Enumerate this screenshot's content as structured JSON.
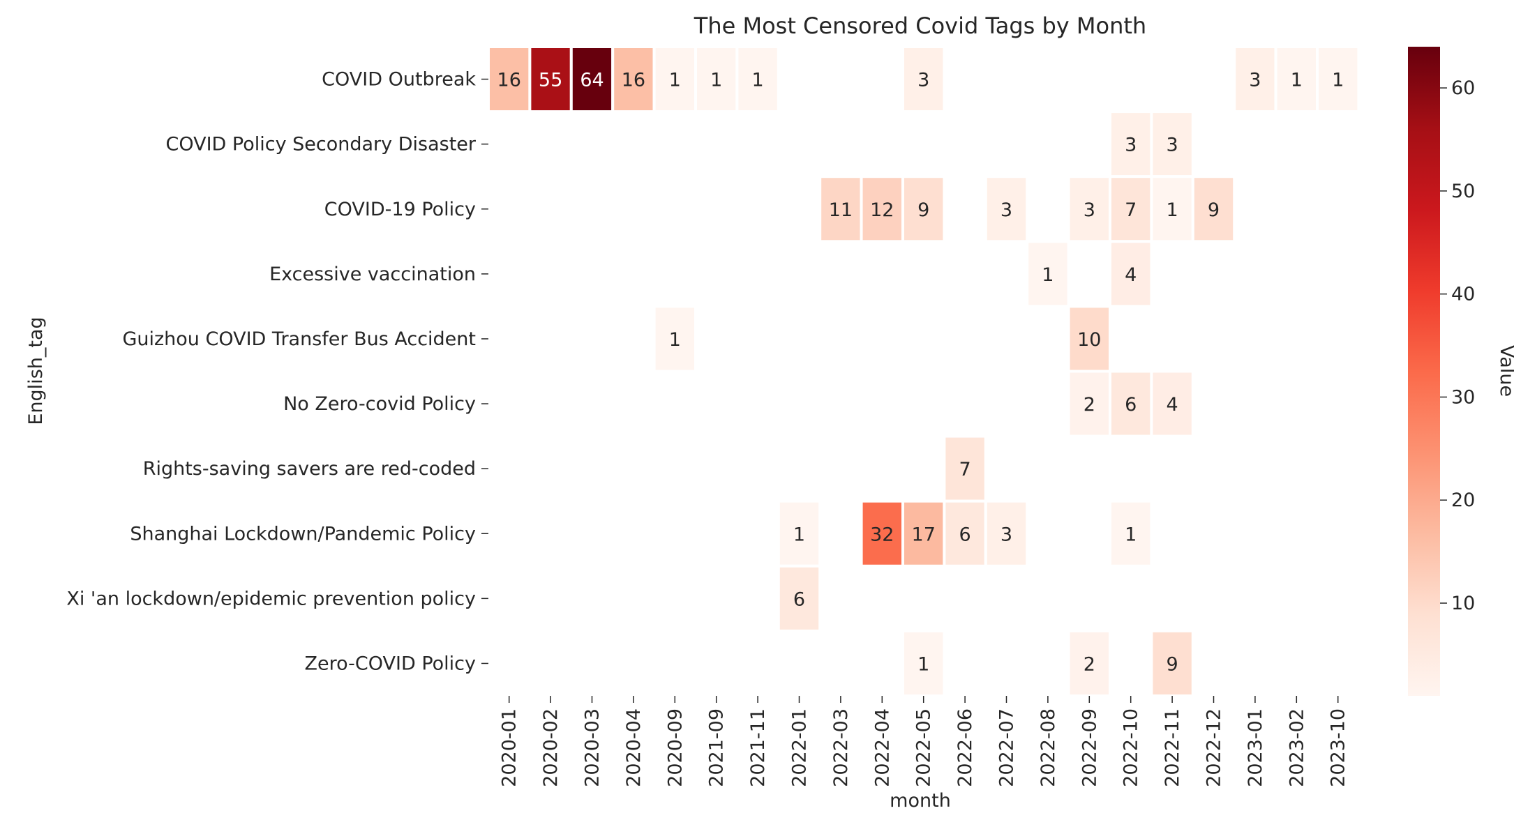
{
  "chart_data": {
    "type": "heatmap",
    "title": "The Most Censored Covid Tags by Month",
    "xlabel": "month",
    "ylabel": "English_tag",
    "colorbar_label": "Value",
    "colormap": "Reds",
    "value_range": [
      1,
      64
    ],
    "colorbar_ticks": [
      10,
      20,
      30,
      40,
      50,
      60
    ],
    "x": [
      "2020-01",
      "2020-02",
      "2020-03",
      "2020-04",
      "2020-09",
      "2021-09",
      "2021-11",
      "2022-01",
      "2022-03",
      "2022-04",
      "2022-05",
      "2022-06",
      "2022-07",
      "2022-08",
      "2022-09",
      "2022-10",
      "2022-11",
      "2022-12",
      "2023-01",
      "2023-02",
      "2023-10"
    ],
    "y": [
      "COVID Outbreak",
      "COVID Policy Secondary Disaster",
      "COVID-19 Policy",
      "Excessive vaccination",
      "Guizhou COVID Transfer Bus Accident",
      "No Zero-covid Policy",
      "Rights-saving savers are red-coded",
      "Shanghai Lockdown/Pandemic Policy",
      "Xi 'an lockdown/epidemic prevention policy",
      "Zero-COVID Policy"
    ],
    "values": [
      [
        16,
        55,
        64,
        16,
        1,
        1,
        1,
        null,
        null,
        null,
        3,
        null,
        null,
        null,
        null,
        null,
        null,
        null,
        3,
        1,
        1
      ],
      [
        null,
        null,
        null,
        null,
        null,
        null,
        null,
        null,
        null,
        null,
        null,
        null,
        null,
        null,
        null,
        3,
        3,
        null,
        null,
        null,
        null
      ],
      [
        null,
        null,
        null,
        null,
        null,
        null,
        null,
        null,
        11,
        12,
        9,
        null,
        3,
        null,
        3,
        7,
        1,
        9,
        null,
        null,
        null
      ],
      [
        null,
        null,
        null,
        null,
        null,
        null,
        null,
        null,
        null,
        null,
        null,
        null,
        null,
        1,
        null,
        4,
        null,
        null,
        null,
        null,
        null
      ],
      [
        null,
        null,
        null,
        null,
        1,
        null,
        null,
        null,
        null,
        null,
        null,
        null,
        null,
        null,
        10,
        null,
        null,
        null,
        null,
        null,
        null
      ],
      [
        null,
        null,
        null,
        null,
        null,
        null,
        null,
        null,
        null,
        null,
        null,
        null,
        null,
        null,
        2,
        6,
        4,
        null,
        null,
        null,
        null
      ],
      [
        null,
        null,
        null,
        null,
        null,
        null,
        null,
        null,
        null,
        null,
        null,
        7,
        null,
        null,
        null,
        null,
        null,
        null,
        null,
        null,
        null
      ],
      [
        null,
        null,
        null,
        null,
        null,
        null,
        null,
        1,
        null,
        32,
        17,
        6,
        3,
        null,
        null,
        1,
        null,
        null,
        null,
        null,
        null
      ],
      [
        null,
        null,
        null,
        null,
        null,
        null,
        null,
        6,
        null,
        null,
        null,
        null,
        null,
        null,
        null,
        null,
        null,
        null,
        null,
        null,
        null
      ],
      [
        null,
        null,
        null,
        null,
        null,
        null,
        null,
        null,
        null,
        null,
        1,
        null,
        null,
        null,
        2,
        null,
        9,
        null,
        null,
        null,
        null
      ]
    ]
  }
}
